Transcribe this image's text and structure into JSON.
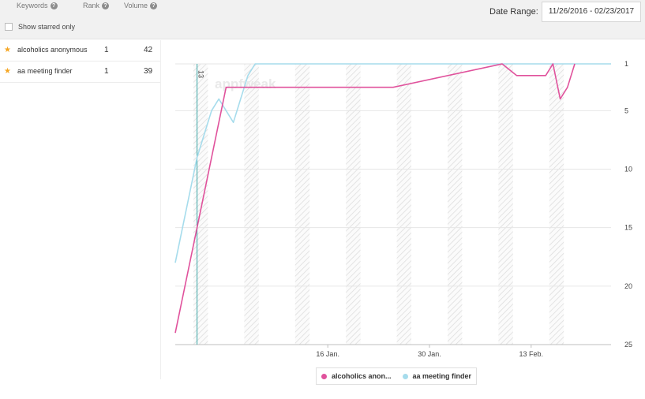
{
  "header": {
    "col_keywords": "Keywords",
    "col_rank": "Rank",
    "col_volume": "Volume",
    "help_glyph": "?",
    "show_starred": "Show starred only",
    "date_range_label": "Date Range:",
    "date_range_value": "11/26/2016 - 02/23/2017"
  },
  "keywords": [
    {
      "star": "★",
      "keyword": "alcoholics anonymous",
      "rank": "1",
      "volume": "42"
    },
    {
      "star": "★",
      "keyword": "aa meeting finder",
      "rank": "1",
      "volume": "39"
    }
  ],
  "watermark": "appfweak",
  "marker_label": "13",
  "legend": {
    "alcoholics": "alcoholics anon...",
    "aa_finder": "aa meeting finder"
  },
  "chart_data": {
    "type": "line",
    "y_reversed": true,
    "ylim": [
      1,
      25
    ],
    "y_ticks": [
      "1",
      "5",
      "10",
      "15",
      "20",
      "25"
    ],
    "x_ticks": [
      "16 Jan.",
      "30 Jan.",
      "13 Feb."
    ],
    "x_tick_days": [
      21,
      35,
      49
    ],
    "x_range_days": [
      0,
      60
    ],
    "marker_day": 3,
    "grey_band_days": [
      [
        2.5,
        4.5
      ],
      [
        9.5,
        11.5
      ],
      [
        16.5,
        18.5
      ],
      [
        23.5,
        25.5
      ],
      [
        30.5,
        32.5
      ],
      [
        37.5,
        39.5
      ],
      [
        44.5,
        46.5
      ],
      [
        51.5,
        53.5
      ]
    ],
    "series": [
      {
        "name": "alcoholics anon...",
        "color": "#e0529c",
        "x": [
          0,
          7,
          30,
          45,
          47,
          51,
          52,
          53,
          54,
          55
        ],
        "y": [
          24,
          3,
          3,
          1,
          2,
          2,
          1,
          4,
          3,
          1
        ]
      },
      {
        "name": "aa meeting finder",
        "color": "#a6dcec",
        "x": [
          0,
          3,
          5,
          6,
          8,
          10,
          11,
          60
        ],
        "y": [
          18,
          9,
          5,
          4,
          6,
          2,
          1,
          1
        ]
      }
    ]
  }
}
